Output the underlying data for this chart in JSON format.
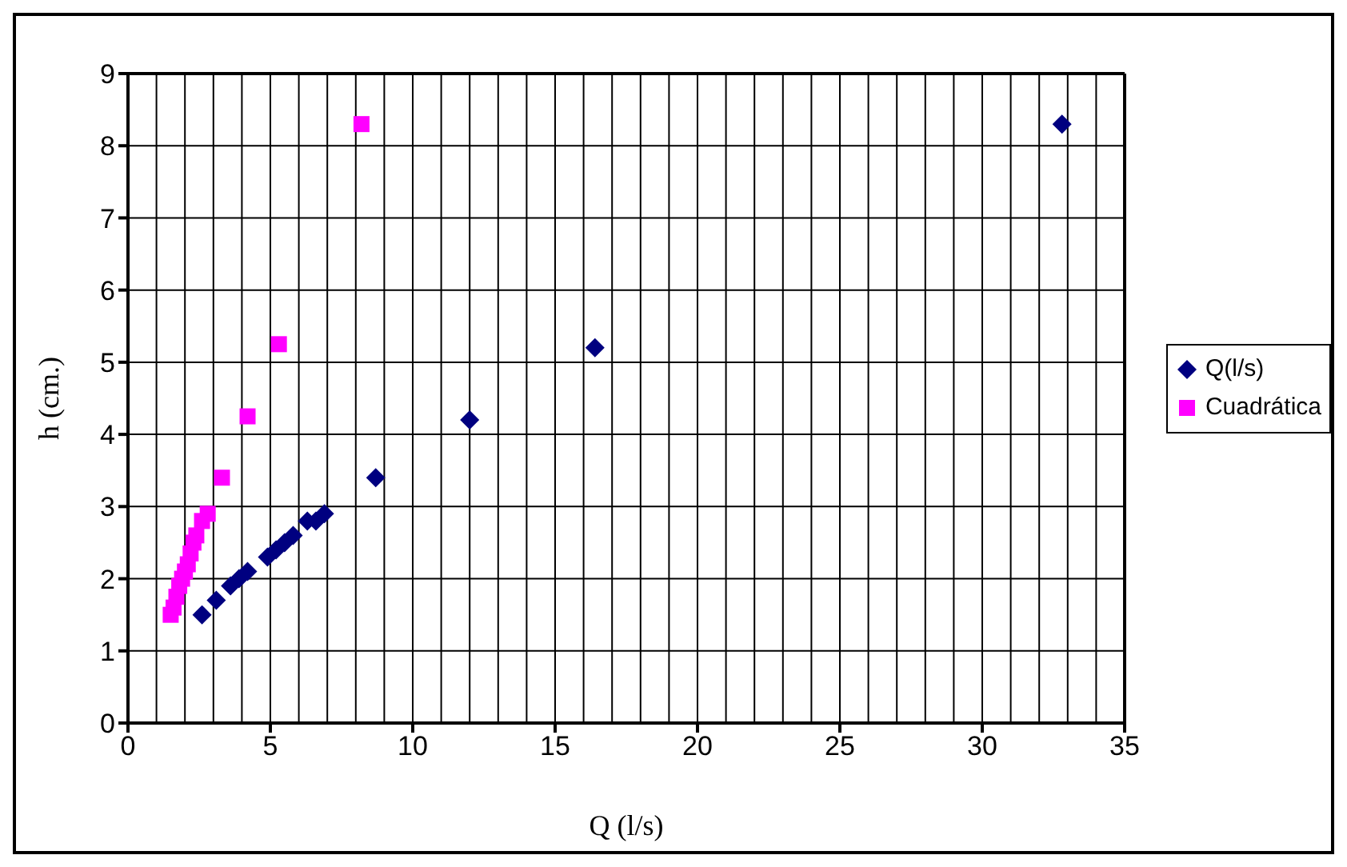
{
  "chart_data": {
    "type": "scatter",
    "xlabel": "Q (l/s)",
    "ylabel": "h (cm.)",
    "xlim": [
      0,
      35
    ],
    "xticks": [
      0,
      5,
      10,
      15,
      20,
      25,
      30,
      35
    ],
    "ylim": [
      0,
      9
    ],
    "yticks": [
      0,
      1,
      2,
      3,
      4,
      5,
      6,
      7,
      8,
      9
    ],
    "grid": true,
    "legend": "right",
    "series": [
      {
        "name": "Q(l/s)",
        "color": "#000080",
        "marker": "diamond",
        "x": [
          2.6,
          3.1,
          3.6,
          3.9,
          4.2,
          4.9,
          5.2,
          5.5,
          5.8,
          6.3,
          6.6,
          6.9,
          8.7,
          12.0,
          16.4,
          32.8
        ],
        "values": [
          1.5,
          1.7,
          1.9,
          2.0,
          2.1,
          2.3,
          2.4,
          2.5,
          2.6,
          2.8,
          2.8,
          2.9,
          3.4,
          4.2,
          5.2,
          8.3
        ]
      },
      {
        "name": "Cuadrática",
        "color": "#ff00ff",
        "marker": "square",
        "x": [
          1.5,
          1.6,
          1.7,
          1.8,
          1.9,
          2.0,
          2.1,
          2.2,
          2.3,
          2.4,
          2.6,
          2.8,
          3.3,
          4.2,
          5.3,
          8.2
        ],
        "values": [
          1.5,
          1.6,
          1.75,
          1.9,
          2.0,
          2.1,
          2.2,
          2.35,
          2.5,
          2.6,
          2.8,
          2.9,
          3.4,
          4.25,
          5.25,
          8.3
        ]
      }
    ]
  }
}
